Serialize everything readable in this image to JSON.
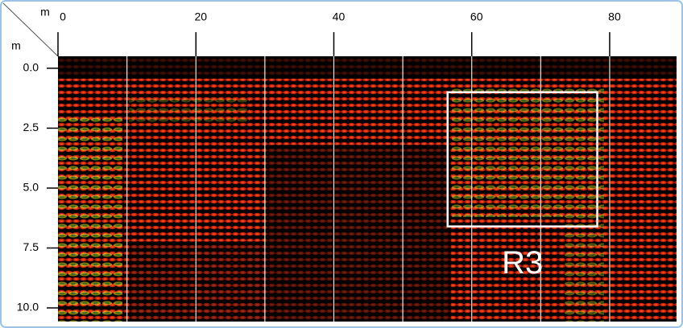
{
  "chart_data": {
    "type": "radargram",
    "xlabel": "m",
    "ylabel": "m",
    "xlim": [
      0,
      89.7
    ],
    "xticks": [
      0,
      20,
      40,
      60,
      80
    ],
    "ylim": [
      -0.5,
      10.57
    ],
    "yticks": [
      {
        "value": 0,
        "label": "0.0"
      },
      {
        "value": 2.5,
        "label": "2.5"
      },
      {
        "value": 5,
        "label": "5.0"
      },
      {
        "value": 7.5,
        "label": "7.5"
      },
      {
        "value": 10,
        "label": "10.0"
      }
    ],
    "xgrid": [
      10,
      20,
      30,
      40,
      50,
      60,
      70,
      80
    ],
    "regions": [
      {
        "label": "R3",
        "x": [
          56.5,
          78.2
        ],
        "y": [
          1.0,
          6.6
        ]
      }
    ]
  }
}
